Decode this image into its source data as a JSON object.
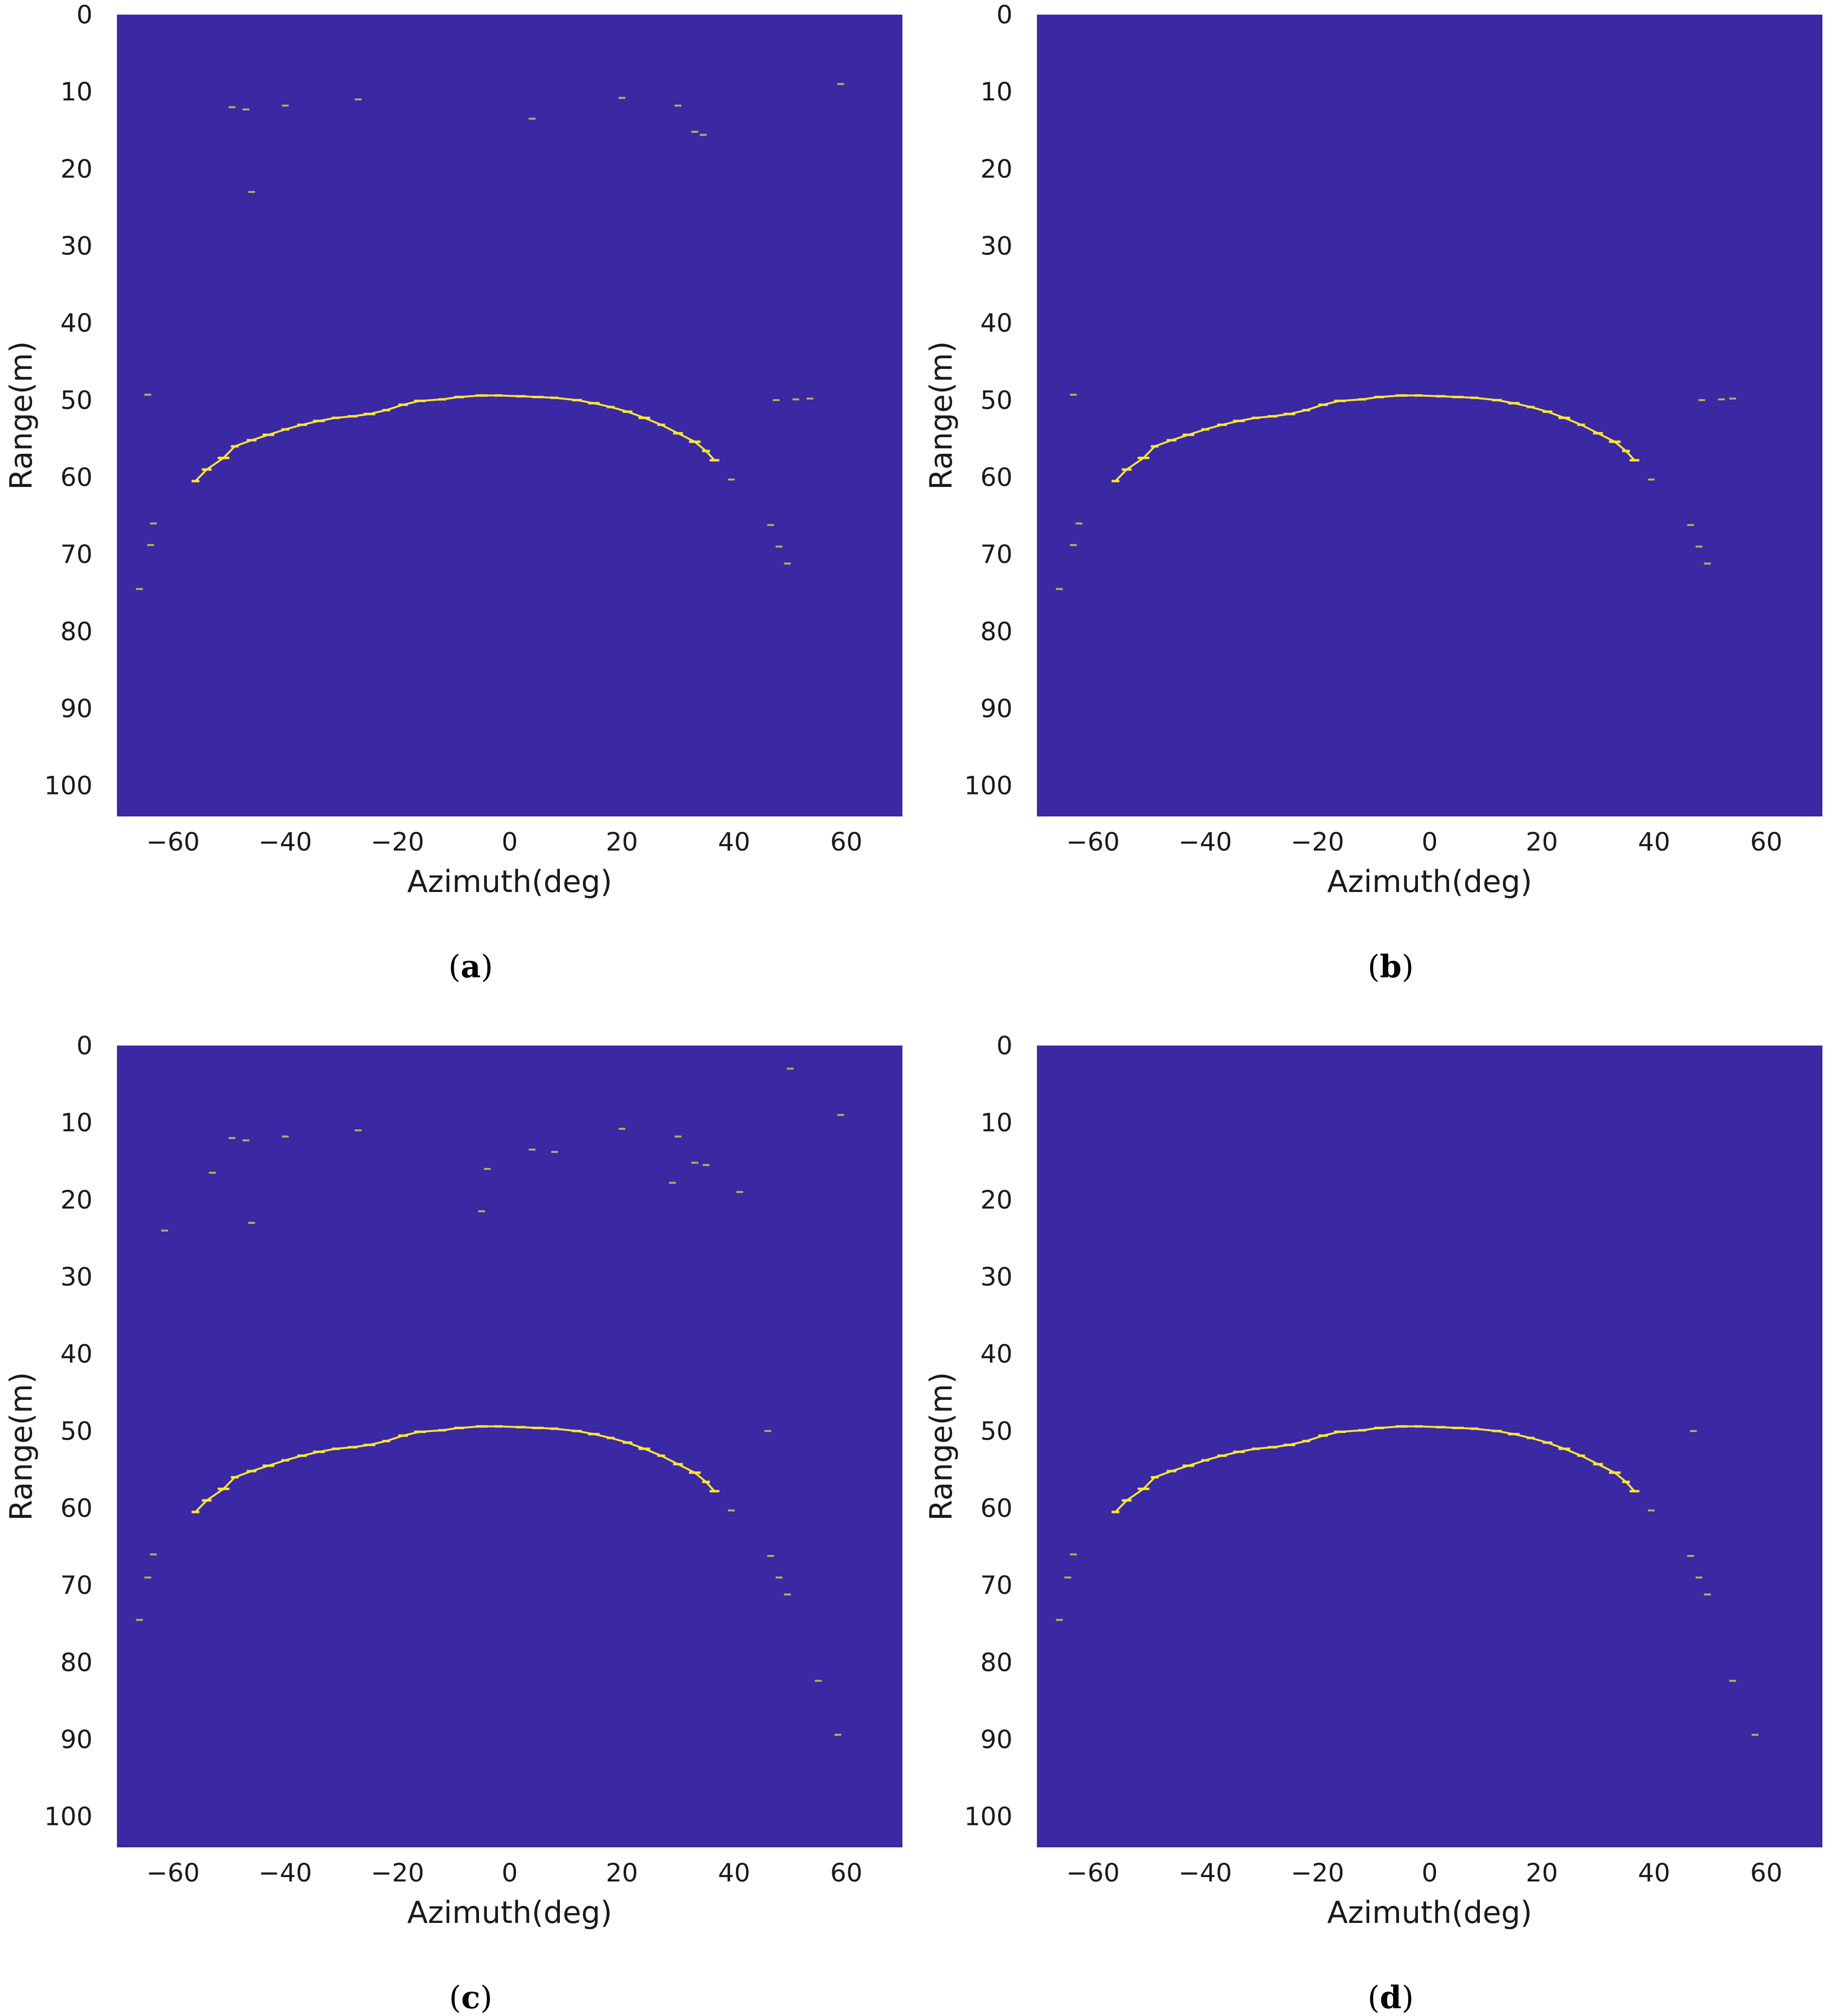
{
  "chart_data": [
    {
      "panel": "a",
      "type": "heatmap",
      "caption": "(a)",
      "xlabel": "Azimuth(deg)",
      "ylabel": "Range(m)",
      "xlim": [
        -70,
        70
      ],
      "ylim": [
        104,
        0
      ],
      "xticks": [
        -60,
        -40,
        -20,
        0,
        20,
        40,
        60
      ],
      "yticks": [
        0,
        10,
        20,
        30,
        40,
        50,
        60,
        70,
        80,
        90,
        100
      ],
      "background_color": "#3b28a3",
      "highlight_color": "#f5e636",
      "arc": [
        [
          -56,
          60.5
        ],
        [
          -54,
          59
        ],
        [
          -51,
          57.5
        ],
        [
          -49,
          56
        ],
        [
          -46,
          55.2
        ],
        [
          -43,
          54.5
        ],
        [
          -40,
          53.8
        ],
        [
          -37,
          53.2
        ],
        [
          -34,
          52.7
        ],
        [
          -31,
          52.3
        ],
        [
          -28,
          52.1
        ],
        [
          -25,
          51.8
        ],
        [
          -22,
          51.3
        ],
        [
          -19,
          50.6
        ],
        [
          -16,
          50.1
        ],
        [
          -12,
          49.9
        ],
        [
          -9,
          49.6
        ],
        [
          -5,
          49.4
        ],
        [
          -2,
          49.4
        ],
        [
          2,
          49.5
        ],
        [
          5,
          49.6
        ],
        [
          8,
          49.7
        ],
        [
          12,
          50
        ],
        [
          15,
          50.4
        ],
        [
          18,
          50.9
        ],
        [
          21,
          51.5
        ],
        [
          24,
          52.3
        ],
        [
          27,
          53.2
        ],
        [
          30,
          54.3
        ],
        [
          33,
          55.4
        ],
        [
          35,
          56.6
        ],
        [
          36.5,
          57.8
        ]
      ],
      "points": [
        [
          -64.5,
          49.3
        ],
        [
          -63.5,
          66
        ],
        [
          -64,
          68.8
        ],
        [
          -66,
          74.5
        ],
        [
          -49.5,
          12
        ],
        [
          -47,
          12.3
        ],
        [
          -40,
          11.8
        ],
        [
          -27,
          11
        ],
        [
          -46,
          23
        ],
        [
          4,
          13.5
        ],
        [
          20,
          10.8
        ],
        [
          30,
          11.8
        ],
        [
          33,
          15.2
        ],
        [
          34.5,
          15.6
        ],
        [
          39.5,
          60.3
        ],
        [
          46.5,
          66.2
        ],
        [
          48,
          69
        ],
        [
          49.5,
          71.2
        ],
        [
          47.5,
          50
        ],
        [
          51,
          49.9
        ],
        [
          53.5,
          49.8
        ],
        [
          59,
          9
        ]
      ]
    },
    {
      "panel": "b",
      "type": "heatmap",
      "caption": "(b)",
      "xlabel": "Azimuth(deg)",
      "ylabel": "Range(m)",
      "xlim": [
        -70,
        70
      ],
      "ylim": [
        104,
        0
      ],
      "xticks": [
        -60,
        -40,
        -20,
        0,
        20,
        40,
        60
      ],
      "yticks": [
        0,
        10,
        20,
        30,
        40,
        50,
        60,
        70,
        80,
        90,
        100
      ],
      "background_color": "#3b28a3",
      "highlight_color": "#f5e636",
      "arc": [
        [
          -56,
          60.5
        ],
        [
          -54,
          59
        ],
        [
          -51,
          57.5
        ],
        [
          -49,
          56
        ],
        [
          -46,
          55.2
        ],
        [
          -43,
          54.5
        ],
        [
          -40,
          53.8
        ],
        [
          -37,
          53.2
        ],
        [
          -34,
          52.7
        ],
        [
          -31,
          52.3
        ],
        [
          -28,
          52.1
        ],
        [
          -25,
          51.8
        ],
        [
          -22,
          51.3
        ],
        [
          -19,
          50.6
        ],
        [
          -16,
          50.1
        ],
        [
          -12,
          49.9
        ],
        [
          -9,
          49.6
        ],
        [
          -5,
          49.4
        ],
        [
          -2,
          49.4
        ],
        [
          2,
          49.5
        ],
        [
          5,
          49.6
        ],
        [
          8,
          49.7
        ],
        [
          12,
          50
        ],
        [
          15,
          50.4
        ],
        [
          18,
          50.9
        ],
        [
          21,
          51.5
        ],
        [
          24,
          52.3
        ],
        [
          27,
          53.2
        ],
        [
          30,
          54.3
        ],
        [
          33,
          55.4
        ],
        [
          35,
          56.6
        ],
        [
          36.5,
          57.8
        ]
      ],
      "points": [
        [
          -63.5,
          49.3
        ],
        [
          -62.5,
          66
        ],
        [
          -63.5,
          68.8
        ],
        [
          -66,
          74.5
        ],
        [
          39.5,
          60.3
        ],
        [
          46.5,
          66.2
        ],
        [
          48,
          69
        ],
        [
          49.5,
          71.2
        ],
        [
          48.5,
          50
        ],
        [
          52,
          49.9
        ],
        [
          54,
          49.8
        ]
      ]
    },
    {
      "panel": "c",
      "type": "heatmap",
      "caption": "(c)",
      "xlabel": "Azimuth(deg)",
      "ylabel": "Range(m)",
      "xlim": [
        -70,
        70
      ],
      "ylim": [
        104,
        0
      ],
      "xticks": [
        -60,
        -40,
        -20,
        0,
        20,
        40,
        60
      ],
      "yticks": [
        0,
        10,
        20,
        30,
        40,
        50,
        60,
        70,
        80,
        90,
        100
      ],
      "background_color": "#3b28a3",
      "highlight_color": "#f5e636",
      "arc": [
        [
          -56,
          60.5
        ],
        [
          -54,
          59
        ],
        [
          -51,
          57.5
        ],
        [
          -49,
          56
        ],
        [
          -46,
          55.2
        ],
        [
          -43,
          54.5
        ],
        [
          -40,
          53.8
        ],
        [
          -37,
          53.2
        ],
        [
          -34,
          52.7
        ],
        [
          -31,
          52.3
        ],
        [
          -28,
          52.1
        ],
        [
          -25,
          51.8
        ],
        [
          -22,
          51.3
        ],
        [
          -19,
          50.6
        ],
        [
          -16,
          50.1
        ],
        [
          -12,
          49.9
        ],
        [
          -9,
          49.6
        ],
        [
          -5,
          49.4
        ],
        [
          -2,
          49.4
        ],
        [
          2,
          49.5
        ],
        [
          5,
          49.6
        ],
        [
          8,
          49.7
        ],
        [
          12,
          50
        ],
        [
          15,
          50.4
        ],
        [
          18,
          50.9
        ],
        [
          21,
          51.5
        ],
        [
          24,
          52.3
        ],
        [
          27,
          53.2
        ],
        [
          30,
          54.3
        ],
        [
          33,
          55.4
        ],
        [
          35,
          56.6
        ],
        [
          36.5,
          57.8
        ]
      ],
      "points": [
        [
          -63.5,
          66
        ],
        [
          -64.5,
          69
        ],
        [
          -66,
          74.5
        ],
        [
          -61.5,
          24
        ],
        [
          -53,
          16.5
        ],
        [
          -49.5,
          12
        ],
        [
          -47,
          12.3
        ],
        [
          -40,
          11.8
        ],
        [
          -27,
          11
        ],
        [
          -46,
          23
        ],
        [
          -4,
          16
        ],
        [
          -5,
          21.5
        ],
        [
          4,
          13.5
        ],
        [
          8,
          13.8
        ],
        [
          20,
          10.8
        ],
        [
          29,
          17.8
        ],
        [
          30,
          11.8
        ],
        [
          33,
          15.2
        ],
        [
          35,
          15.5
        ],
        [
          41,
          19
        ],
        [
          39.5,
          60.3
        ],
        [
          46.5,
          66.2
        ],
        [
          48,
          69
        ],
        [
          49.5,
          71.2
        ],
        [
          46,
          50
        ],
        [
          55,
          82.4
        ],
        [
          58.5,
          89.4
        ],
        [
          50,
          3
        ],
        [
          59,
          9
        ]
      ]
    },
    {
      "panel": "d",
      "type": "heatmap",
      "caption": "(d)",
      "xlabel": "Azimuth(deg)",
      "ylabel": "Range(m)",
      "xlim": [
        -70,
        70
      ],
      "ylim": [
        104,
        0
      ],
      "xticks": [
        -60,
        -40,
        -20,
        0,
        20,
        40,
        60
      ],
      "yticks": [
        0,
        10,
        20,
        30,
        40,
        50,
        60,
        70,
        80,
        90,
        100
      ],
      "background_color": "#3b28a3",
      "highlight_color": "#f5e636",
      "arc": [
        [
          -56,
          60.5
        ],
        [
          -54,
          59
        ],
        [
          -51,
          57.5
        ],
        [
          -49,
          56
        ],
        [
          -46,
          55.2
        ],
        [
          -43,
          54.5
        ],
        [
          -40,
          53.8
        ],
        [
          -37,
          53.2
        ],
        [
          -34,
          52.7
        ],
        [
          -31,
          52.3
        ],
        [
          -28,
          52.1
        ],
        [
          -25,
          51.8
        ],
        [
          -22,
          51.3
        ],
        [
          -19,
          50.6
        ],
        [
          -16,
          50.1
        ],
        [
          -12,
          49.9
        ],
        [
          -9,
          49.6
        ],
        [
          -5,
          49.4
        ],
        [
          -2,
          49.4
        ],
        [
          2,
          49.5
        ],
        [
          5,
          49.6
        ],
        [
          8,
          49.7
        ],
        [
          12,
          50
        ],
        [
          15,
          50.4
        ],
        [
          18,
          50.9
        ],
        [
          21,
          51.5
        ],
        [
          24,
          52.3
        ],
        [
          27,
          53.2
        ],
        [
          30,
          54.3
        ],
        [
          33,
          55.4
        ],
        [
          35,
          56.6
        ],
        [
          36.5,
          57.8
        ]
      ],
      "points": [
        [
          -63.5,
          66
        ],
        [
          -64.5,
          69
        ],
        [
          -66,
          74.5
        ],
        [
          39.5,
          60.3
        ],
        [
          46.5,
          66.2
        ],
        [
          48,
          69
        ],
        [
          49.5,
          71.2
        ],
        [
          47,
          50
        ],
        [
          54,
          82.4
        ],
        [
          58,
          89.4
        ]
      ]
    }
  ]
}
